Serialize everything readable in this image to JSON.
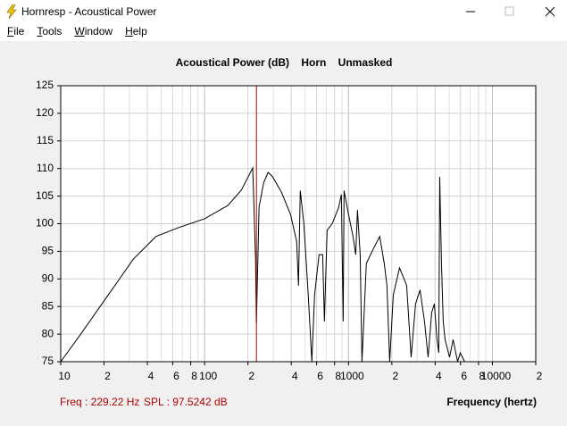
{
  "window": {
    "title": "Hornresp - Acoustical Power",
    "menu": [
      "File",
      "Tools",
      "Window",
      "Help"
    ]
  },
  "chart_data": {
    "type": "line",
    "title": "Acoustical Power (dB)    Horn    Unmasked",
    "x_label": "Frequency (hertz)",
    "xlim": [
      10,
      20000
    ],
    "ylim": [
      75,
      125
    ],
    "log_x": true,
    "grid": true,
    "xticks": [
      10,
      {
        "value": 20,
        "label": "2"
      },
      {
        "value": 40,
        "label": "4"
      },
      {
        "value": 60,
        "label": "6"
      },
      {
        "value": 80,
        "label": "8"
      },
      100,
      {
        "value": 200,
        "label": "2"
      },
      {
        "value": 400,
        "label": "4"
      },
      {
        "value": 600,
        "label": "6"
      },
      {
        "value": 800,
        "label": "8"
      },
      1000,
      {
        "value": 2000,
        "label": "2"
      },
      {
        "value": 4000,
        "label": "4"
      },
      {
        "value": 6000,
        "label": "6"
      },
      {
        "value": 8000,
        "label": "8"
      },
      10000,
      {
        "value": 20000,
        "label": "2"
      }
    ],
    "yticks": [
      75,
      80,
      85,
      90,
      95,
      100,
      105,
      110,
      115,
      120,
      125
    ],
    "cursor": {
      "value": 229.22,
      "label": "Freq : 229.22 Hz",
      "color": "#b00000"
    },
    "status": "SPL : 97.5242 dB",
    "series": [
      {
        "name": "Acoustical Power",
        "color": "#000000",
        "x": [
          10,
          13.7,
          21,
          32,
          46,
          66,
          100,
          145,
          180,
          216,
          226,
          229,
          239,
          257,
          276,
          297,
          342,
          395,
          436,
          449,
          462,
          489,
          525,
          556,
          581,
          624,
          661,
          680,
          710,
          773,
          855,
          892,
          918,
          931,
          1000,
          1074,
          1122,
          1154,
          1205,
          1240,
          1330,
          1471,
          1648,
          1771,
          1849,
          1932,
          2047,
          2262,
          2535,
          2723,
          2924,
          3141,
          3373,
          3573,
          3784,
          3948,
          4121,
          4236,
          4302,
          4426,
          4550,
          4688,
          5035,
          5333,
          5728,
          5974,
          6412
        ],
        "values": [
          75,
          79.9,
          86.8,
          93.6,
          97.7,
          99.3,
          100.9,
          103.3,
          106.1,
          110.1,
          93.6,
          82,
          103,
          107.4,
          109.3,
          108.5,
          105.7,
          101.7,
          96.8,
          88.8,
          106,
          100.1,
          87.1,
          75,
          87.1,
          94.4,
          94.4,
          82.3,
          98.8,
          100.1,
          103,
          105.3,
          82.3,
          106,
          101.7,
          97.7,
          94.4,
          102.5,
          94.4,
          75,
          92.8,
          95.2,
          97.7,
          92.8,
          88.8,
          75,
          87.1,
          92,
          88.8,
          75.8,
          85.5,
          88,
          82.3,
          75.8,
          83.9,
          85.5,
          79,
          76.6,
          108.5,
          92.8,
          82.3,
          79,
          75.8,
          79,
          75,
          76.6,
          75
        ]
      }
    ]
  }
}
